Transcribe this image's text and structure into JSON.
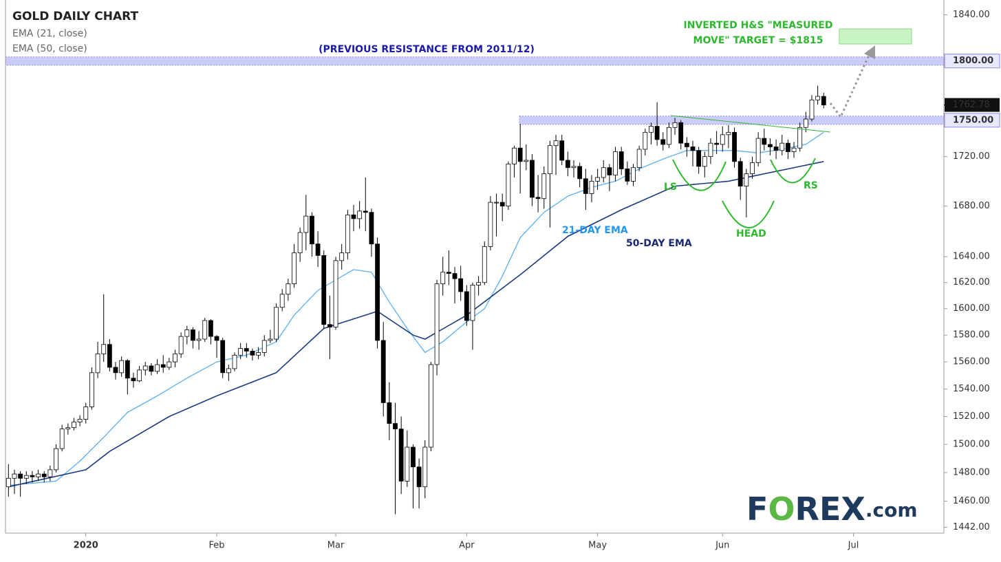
{
  "chart_data": {
    "type": "candlestick",
    "title": "GOLD DAILY CHART",
    "log_scale": true,
    "grid": false,
    "up_color": "#ffffff",
    "down_color": "#000000",
    "outline_color": "#000000",
    "xlim": [
      -0.5,
      157.2
    ],
    "xticks": [
      {
        "value": 13,
        "label": "2020"
      },
      {
        "value": 35,
        "label": "Feb"
      },
      {
        "value": 55,
        "label": "Mar"
      },
      {
        "value": 77,
        "label": "Apr"
      },
      {
        "value": 99,
        "label": "May"
      },
      {
        "value": 120,
        "label": "Jun"
      },
      {
        "value": 142,
        "label": "Jul"
      }
    ],
    "ylim": [
      1438,
      1853
    ],
    "yticks": [
      {
        "value": 1442,
        "label": "1442.00"
      },
      {
        "value": 1460,
        "label": "1460.00"
      },
      {
        "value": 1480,
        "label": "1480.00"
      },
      {
        "value": 1500,
        "label": "1500.00"
      },
      {
        "value": 1520,
        "label": "1520.00"
      },
      {
        "value": 1540,
        "label": "1540.00"
      },
      {
        "value": 1560,
        "label": "1560.00"
      },
      {
        "value": 1580,
        "label": "1580.00"
      },
      {
        "value": 1600,
        "label": "1600.00"
      },
      {
        "value": 1620,
        "label": "1620.00"
      },
      {
        "value": 1640,
        "label": "1640.00"
      },
      {
        "value": 1680,
        "label": "1680.00"
      },
      {
        "value": 1720,
        "label": "1720.00"
      },
      {
        "value": 1840,
        "label": "1840.00"
      }
    ],
    "levels": [
      {
        "value": 1800,
        "label": "1800.00"
      },
      {
        "value": 1750,
        "label": "1750.00"
      }
    ],
    "last_price": {
      "value": 1762.78,
      "label": "1762.78"
    },
    "open": [
      1470,
      1476,
      1479,
      1476,
      1478,
      1477,
      1479,
      1477,
      1482,
      1497,
      1511,
      1512,
      1516,
      1518,
      1527,
      1552,
      1566,
      1573,
      1556,
      1552,
      1561,
      1548,
      1546,
      1554,
      1557,
      1553,
      1558,
      1556,
      1560,
      1566,
      1579,
      1584,
      1576,
      1577,
      1591,
      1579,
      1576,
      1552,
      1555,
      1565,
      1570,
      1568,
      1565,
      1567,
      1576,
      1577,
      1601,
      1611,
      1619,
      1643,
      1659,
      1672,
      1650,
      1641,
      1588,
      1586,
      1637,
      1643,
      1673,
      1670,
      1676,
      1675,
      1650,
      1576,
      1530,
      1515,
      1511,
      1474,
      1498,
      1484,
      1470,
      1498,
      1558,
      1619,
      1628,
      1627,
      1623,
      1613,
      1591,
      1618,
      1620,
      1648,
      1683,
      1683,
      1680,
      1714,
      1727,
      1716,
      1717,
      1687,
      1686,
      1706,
      1729,
      1733,
      1717,
      1711,
      1712,
      1702,
      1690,
      1700,
      1703,
      1711,
      1705,
      1724,
      1710,
      1700,
      1711,
      1726,
      1740,
      1745,
      1734,
      1730,
      1744,
      1748,
      1731,
      1728,
      1725,
      1712,
      1720,
      1731,
      1730,
      1738,
      1740,
      1716,
      1696,
      1706,
      1715,
      1735,
      1730,
      1728,
      1725,
      1731,
      1724,
      1727,
      1744,
      1751,
      1767,
      1770
    ],
    "high": [
      1486,
      1482,
      1481,
      1481,
      1481,
      1482,
      1481,
      1485,
      1500,
      1514,
      1515,
      1519,
      1521,
      1530,
      1556,
      1575,
      1611,
      1577,
      1560,
      1564,
      1562,
      1552,
      1557,
      1560,
      1559,
      1562,
      1565,
      1563,
      1569,
      1582,
      1587,
      1586,
      1583,
      1593,
      1592,
      1580,
      1578,
      1558,
      1567,
      1574,
      1574,
      1570,
      1571,
      1580,
      1584,
      1604,
      1615,
      1623,
      1650,
      1663,
      1689,
      1675,
      1660,
      1645,
      1610,
      1640,
      1650,
      1677,
      1681,
      1684,
      1703,
      1678,
      1655,
      1590,
      1545,
      1530,
      1520,
      1510,
      1500,
      1490,
      1503,
      1560,
      1622,
      1640,
      1645,
      1632,
      1633,
      1618,
      1620,
      1625,
      1652,
      1688,
      1690,
      1690,
      1716,
      1729,
      1747,
      1730,
      1722,
      1705,
      1712,
      1733,
      1738,
      1738,
      1724,
      1717,
      1715,
      1710,
      1705,
      1710,
      1717,
      1714,
      1728,
      1728,
      1716,
      1714,
      1729,
      1743,
      1748,
      1765,
      1740,
      1748,
      1752,
      1750,
      1736,
      1733,
      1728,
      1724,
      1735,
      1741,
      1745,
      1746,
      1744,
      1719,
      1710,
      1720,
      1740,
      1743,
      1735,
      1734,
      1738,
      1734,
      1732,
      1748,
      1757,
      1771,
      1779,
      1773
    ],
    "low": [
      1463,
      1465,
      1463,
      1472,
      1473,
      1474,
      1473,
      1474,
      1480,
      1495,
      1507,
      1510,
      1513,
      1515,
      1525,
      1548,
      1560,
      1553,
      1547,
      1549,
      1536,
      1541,
      1545,
      1550,
      1550,
      1551,
      1552,
      1554,
      1556,
      1563,
      1573,
      1570,
      1569,
      1575,
      1573,
      1563,
      1548,
      1546,
      1553,
      1562,
      1563,
      1561,
      1562,
      1564,
      1574,
      1575,
      1598,
      1606,
      1616,
      1636,
      1645,
      1640,
      1632,
      1585,
      1562,
      1584,
      1630,
      1638,
      1660,
      1662,
      1660,
      1640,
      1570,
      1520,
      1503,
      1451,
      1465,
      1470,
      1455,
      1455,
      1462,
      1495,
      1550,
      1610,
      1618,
      1604,
      1606,
      1587,
      1569,
      1610,
      1618,
      1645,
      1656,
      1668,
      1677,
      1703,
      1690,
      1709,
      1680,
      1675,
      1678,
      1663,
      1705,
      1713,
      1704,
      1703,
      1695,
      1677,
      1683,
      1693,
      1699,
      1692,
      1700,
      1705,
      1697,
      1696,
      1708,
      1721,
      1730,
      1729,
      1725,
      1727,
      1738,
      1726,
      1720,
      1712,
      1706,
      1703,
      1714,
      1722,
      1724,
      1727,
      1711,
      1685,
      1671,
      1702,
      1712,
      1725,
      1721,
      1718,
      1721,
      1718,
      1719,
      1724,
      1740,
      1749,
      1763,
      1760
    ],
    "close": [
      1476,
      1479,
      1476,
      1478,
      1477,
      1479,
      1477,
      1482,
      1497,
      1511,
      1512,
      1516,
      1518,
      1527,
      1552,
      1566,
      1573,
      1556,
      1552,
      1561,
      1548,
      1546,
      1554,
      1557,
      1553,
      1558,
      1556,
      1560,
      1566,
      1579,
      1584,
      1576,
      1577,
      1591,
      1579,
      1576,
      1552,
      1555,
      1565,
      1570,
      1568,
      1565,
      1567,
      1576,
      1577,
      1601,
      1611,
      1619,
      1643,
      1659,
      1672,
      1650,
      1641,
      1588,
      1586,
      1637,
      1643,
      1673,
      1670,
      1676,
      1675,
      1650,
      1576,
      1530,
      1515,
      1511,
      1474,
      1498,
      1484,
      1470,
      1498,
      1558,
      1619,
      1628,
      1627,
      1623,
      1613,
      1591,
      1618,
      1620,
      1648,
      1683,
      1683,
      1680,
      1714,
      1727,
      1716,
      1717,
      1687,
      1686,
      1706,
      1729,
      1733,
      1717,
      1711,
      1712,
      1702,
      1690,
      1700,
      1703,
      1711,
      1705,
      1724,
      1710,
      1700,
      1711,
      1726,
      1740,
      1745,
      1734,
      1730,
      1744,
      1748,
      1731,
      1728,
      1725,
      1712,
      1720,
      1731,
      1730,
      1738,
      1740,
      1716,
      1696,
      1706,
      1715,
      1735,
      1730,
      1728,
      1725,
      1731,
      1724,
      1727,
      1744,
      1751,
      1767,
      1770,
      1762.78
    ],
    "series": [
      {
        "name": "EMA (21, close)",
        "color": "#5aaef0",
        "x": [
          0,
          8,
          12,
          16,
          20,
          25,
          30,
          35,
          40,
          45,
          48,
          52,
          55,
          58,
          61,
          64,
          67,
          70,
          73,
          77,
          80,
          83,
          86,
          90,
          94,
          98,
          102,
          106,
          110,
          114,
          118,
          122,
          126,
          130,
          134,
          137
        ],
        "values": [
          1471,
          1474,
          1488,
          1505,
          1523,
          1535,
          1548,
          1560,
          1565,
          1575,
          1595,
          1614,
          1622,
          1630,
          1628,
          1605,
          1585,
          1567,
          1575,
          1590,
          1600,
          1625,
          1655,
          1675,
          1688,
          1695,
          1700,
          1710,
          1718,
          1725,
          1725,
          1725,
          1723,
          1726,
          1730,
          1740
        ]
      },
      {
        "name": "EMA (50, close)",
        "color": "#1a3a80",
        "x": [
          0,
          13,
          17,
          27,
          35,
          45,
          53,
          62,
          68,
          70,
          77,
          86,
          94,
          103,
          112,
          121,
          131,
          137
        ],
        "values": [
          1470,
          1482,
          1495,
          1520,
          1535,
          1552,
          1585,
          1598,
          1580,
          1577,
          1595,
          1626,
          1656,
          1677,
          1696,
          1700,
          1710,
          1716
        ]
      }
    ],
    "annotations": {
      "resistance": "(PREVIOUS RESISTANCE FROM 2011/12)",
      "target_line1": "INVERTED H&S \"MEASURED",
      "target_line2": "MOVE\" TARGET = $1815",
      "ema21": "21-DAY EMA",
      "ema50": "50-DAY EMA",
      "ls": "LS",
      "head": "HEAD",
      "rs": "RS"
    },
    "logo": [
      "F",
      "O",
      "REX",
      ".com"
    ]
  }
}
